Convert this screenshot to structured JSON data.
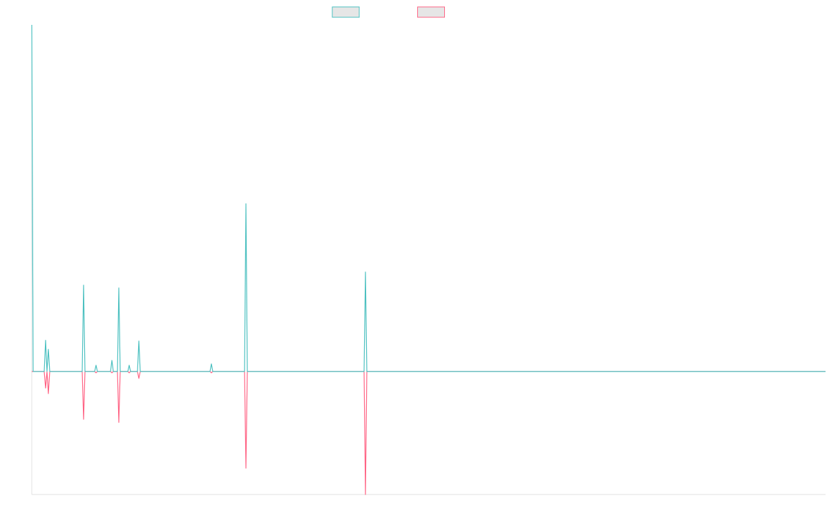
{
  "chart_data": {
    "type": "line",
    "x": [
      0,
      2,
      18,
      20,
      22,
      24,
      26,
      73,
      75,
      77,
      91,
      93,
      95,
      114,
      116,
      118,
      124,
      126,
      128,
      139,
      141,
      143,
      153,
      155,
      157,
      258,
      260,
      262,
      308,
      310,
      312,
      481,
      483,
      485,
      1149
    ],
    "series": [
      {
        "color": "#ff6384",
        "values": [
          0,
          0,
          0,
          -4.8,
          0,
          -6.4,
          0,
          0,
          -13.8,
          0,
          0,
          -0.4,
          0,
          0,
          -0.4,
          0,
          0,
          -14.7,
          0,
          0,
          -0.4,
          0,
          0,
          -2.0,
          0,
          0,
          -0.4,
          0,
          0,
          -27.9,
          0,
          0,
          -35.5,
          0,
          0
        ]
      },
      {
        "color": "#4bc0c0",
        "values": [
          100,
          0,
          0,
          9.0,
          0,
          6.4,
          0,
          0,
          24.9,
          0,
          0,
          1.8,
          0,
          0,
          3.2,
          0,
          0,
          24.1,
          0,
          0,
          1.8,
          0,
          0,
          8.8,
          0,
          0,
          2.2,
          0,
          0,
          48.4,
          0,
          0,
          28.7,
          0,
          0
        ]
      }
    ],
    "legend_order": [
      1,
      0
    ],
    "xlim": [
      0,
      1149
    ],
    "ylim": [
      -35.5,
      100
    ]
  }
}
